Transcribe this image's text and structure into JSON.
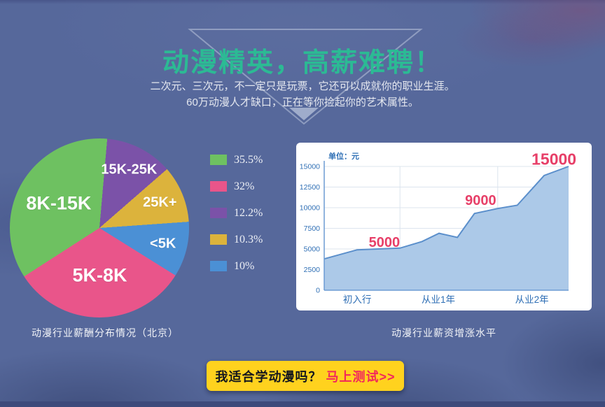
{
  "page": {
    "title": "动漫精英，高薪难聘！",
    "subtitle_line1": "二次元、三次元，不一定只是玩票，它还可以成就你的职业生涯。",
    "subtitle_line2": "60万动漫人才缺口，正在等你捡起你的艺术属性。"
  },
  "captions": {
    "pie": "动漫行业薪酬分布情况（北京）",
    "line": "动漫行业薪资增涨水平"
  },
  "cta": {
    "question": "我适合学动漫吗？",
    "action": "马上测试>>"
  },
  "colors": {
    "title_green": "#2CBA94",
    "background_blue": "#56689B",
    "cta_yellow": "#FFD21E",
    "cta_action_red": "#F2275B",
    "annotation_red": "#E73F68",
    "axis_blue": "#2F6FB5"
  },
  "chart_data": [
    {
      "type": "pie",
      "title": "动漫行业薪酬分布情况（北京）",
      "start_angle_deg": 5,
      "segments": [
        {
          "label": "15K-25K",
          "value": 12.2,
          "color": "#7B52A8"
        },
        {
          "label": "25K+",
          "value": 10.3,
          "color": "#DCB33C"
        },
        {
          "label": "<5K",
          "value": 10.0,
          "color": "#4B90D5"
        },
        {
          "label": "5K-8K",
          "value": 32.0,
          "color": "#E9558A"
        },
        {
          "label": "8K-15K",
          "value": 35.5,
          "color": "#6EC161"
        }
      ],
      "legend": [
        {
          "label": "35.5%",
          "color": "#6EC161"
        },
        {
          "label": "32%",
          "color": "#E9558A"
        },
        {
          "label": "12.2%",
          "color": "#7B52A8"
        },
        {
          "label": "10.3%",
          "color": "#DCB33C"
        },
        {
          "label": "10%",
          "color": "#4B90D5"
        }
      ],
      "legend_position": "right"
    },
    {
      "type": "area",
      "title": "动漫行业薪资增涨水平",
      "unit_label": "单位：元",
      "ylim": [
        0,
        15000
      ],
      "y_ticks": [
        0,
        2500,
        5000,
        7500,
        10000,
        12500,
        15000
      ],
      "grid": true,
      "v_gridlines_x": [
        0.31,
        0.71
      ],
      "x_categories": [
        {
          "label": "初入行",
          "x": 0.135
        },
        {
          "label": "从业1年",
          "x": 0.467
        },
        {
          "label": "从业2年",
          "x": 0.85
        }
      ],
      "points": [
        [
          0.0,
          3800
        ],
        [
          0.135,
          4900
        ],
        [
          0.22,
          5000
        ],
        [
          0.31,
          5100
        ],
        [
          0.4,
          5900
        ],
        [
          0.47,
          6900
        ],
        [
          0.545,
          6400
        ],
        [
          0.615,
          9300
        ],
        [
          0.71,
          9900
        ],
        [
          0.79,
          10300
        ],
        [
          0.9,
          13900
        ],
        [
          1.0,
          15000
        ]
      ],
      "annotations": [
        {
          "text": "5000",
          "x": 0.246,
          "value": 5850,
          "size": 20
        },
        {
          "text": "9000",
          "x": 0.64,
          "value": 10950,
          "size": 20
        },
        {
          "text": "15000",
          "x": 0.94,
          "value": 15900,
          "size": 23
        }
      ],
      "fill_color": "#ACC9E8",
      "line_color": "#5B8FCB",
      "label_color": "#E73F68",
      "axis_color": "#2F6FB5",
      "gridline_color": "#DCE4EE",
      "axis_line_color": "#6D9CD4"
    }
  ]
}
